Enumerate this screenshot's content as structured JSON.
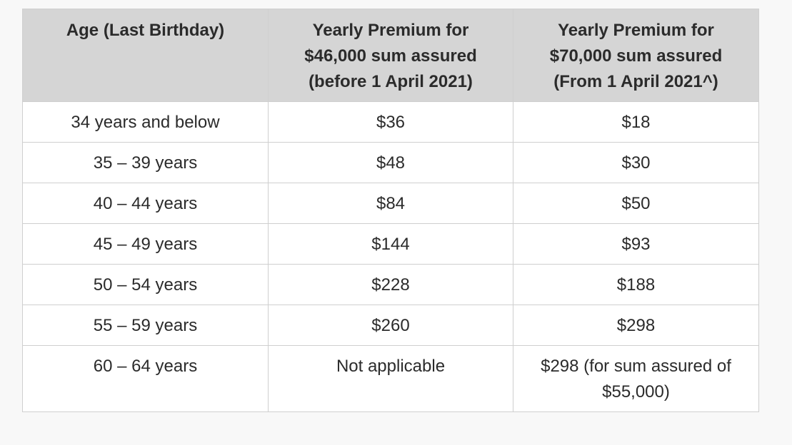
{
  "table": {
    "headers": [
      [
        "Age (Last Birthday)"
      ],
      [
        "Yearly Premium for",
        "$46,000 sum assured",
        "(before 1 April 2021)"
      ],
      [
        "Yearly Premium for",
        "$70,000 sum assured",
        "(From 1 April 2021^)"
      ]
    ],
    "rows": [
      [
        "34 years and below",
        "$36",
        "$18"
      ],
      [
        "35 – 39 years",
        "$48",
        "$30"
      ],
      [
        "40 – 44 years",
        "$84",
        "$50"
      ],
      [
        "45 – 49 years",
        "$144",
        "$93"
      ],
      [
        "50 – 54 years",
        "$228",
        "$188"
      ],
      [
        "55 – 59 years",
        "$260",
        "$298"
      ],
      [
        "60 – 64 years",
        "Not applicable",
        "$298 (for sum assured of"
      ]
    ],
    "last_row_extra": "$55,000)"
  }
}
